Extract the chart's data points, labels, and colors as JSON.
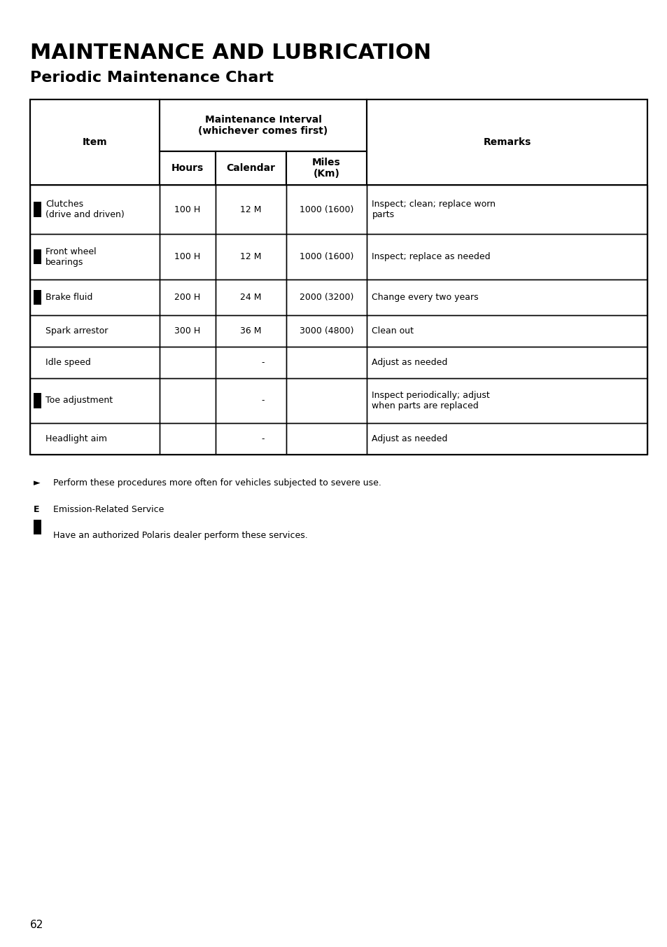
{
  "title_line1": "MAINTENANCE AND LUBRICATION",
  "title_line2": "Periodic Maintenance Chart",
  "page_number": "62",
  "col_headers": [
    "Item",
    "Maintenance Interval\n(whichever comes first)",
    "Remarks"
  ],
  "sub_headers": [
    "Hours",
    "Calendar",
    "Miles\n(Km)"
  ],
  "rows": [
    {
      "has_square": true,
      "item": "Clutches\n(drive and driven)",
      "hours": "100 H",
      "calendar": "12 M",
      "miles": "1000 (1600)",
      "remarks": "Inspect; clean; replace worn\nparts"
    },
    {
      "has_square": true,
      "item": "Front wheel\nbearings",
      "hours": "100 H",
      "calendar": "12 M",
      "miles": "1000 (1600)",
      "remarks": "Inspect; replace as needed"
    },
    {
      "has_square": true,
      "item": "Brake fluid",
      "hours": "200 H",
      "calendar": "24 M",
      "miles": "2000 (3200)",
      "remarks": "Change every two years"
    },
    {
      "has_square": false,
      "item": "Spark arrestor",
      "hours": "300 H",
      "calendar": "36 M",
      "miles": "3000 (4800)",
      "remarks": "Clean out"
    },
    {
      "has_square": false,
      "item": "Idle speed",
      "hours": "",
      "calendar": "-",
      "miles": "",
      "remarks": "Adjust as needed"
    },
    {
      "has_square": true,
      "item": "Toe adjustment",
      "hours": "",
      "calendar": "-",
      "miles": "",
      "remarks": "Inspect periodically; adjust\nwhen parts are replaced"
    },
    {
      "has_square": false,
      "item": "Headlight aim",
      "hours": "",
      "calendar": "-",
      "miles": "",
      "remarks": "Adjust as needed"
    }
  ],
  "footnotes": [
    {
      "symbol": "►",
      "text": "Perform these procedures more often for vehicles subjected to severe use."
    },
    {
      "symbol": "E",
      "text": "Emission-Related Service"
    },
    {
      "symbol": "■",
      "text": "Have an authorized Polaris dealer perform these services."
    }
  ],
  "bg_color": "#ffffff",
  "text_color": "#000000",
  "border_color": "#000000"
}
